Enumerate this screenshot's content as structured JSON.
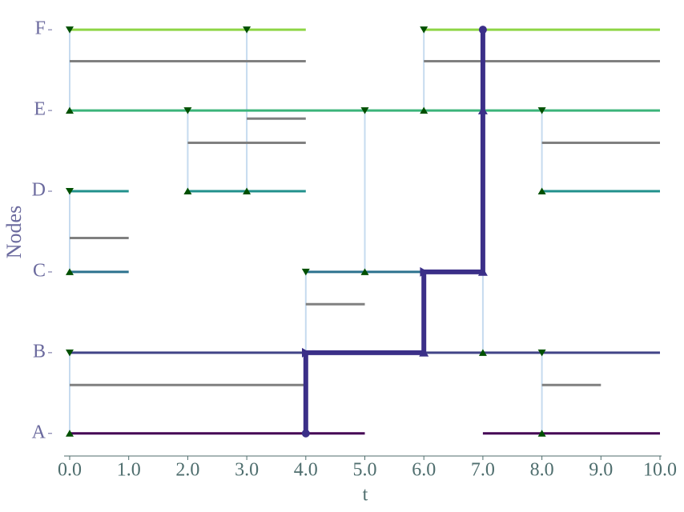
{
  "chart_data": {
    "type": "temporal-network",
    "xlabel": "t",
    "ylabel": "Nodes",
    "xlim": [
      0,
      10
    ],
    "xticks": [
      {
        "value": 0,
        "label": "0.0"
      },
      {
        "value": 1,
        "label": "1.0"
      },
      {
        "value": 2,
        "label": "2.0"
      },
      {
        "value": 3,
        "label": "3.0"
      },
      {
        "value": 4,
        "label": "4.0"
      },
      {
        "value": 5,
        "label": "5.0"
      },
      {
        "value": 6,
        "label": "6.0"
      },
      {
        "value": 7,
        "label": "7.0"
      },
      {
        "value": 8,
        "label": "8.0"
      },
      {
        "value": 9,
        "label": "9.0"
      },
      {
        "value": 10,
        "label": "10.0"
      }
    ],
    "ylim": [
      -0.25,
      5.2
    ],
    "yticks": [
      {
        "value": 0,
        "label": "A"
      },
      {
        "value": 1,
        "label": "B"
      },
      {
        "value": 2,
        "label": "C"
      },
      {
        "value": 3,
        "label": "D"
      },
      {
        "value": 4,
        "label": "E"
      },
      {
        "value": 5,
        "label": "F"
      }
    ],
    "nodes": [
      {
        "y": 0,
        "color": "#440154",
        "intervals": [
          [
            0,
            5
          ],
          [
            7,
            10
          ]
        ]
      },
      {
        "y": 1,
        "color": "#414487",
        "intervals": [
          [
            0,
            10
          ]
        ]
      },
      {
        "y": 2,
        "color": "#2c728e",
        "intervals": [
          [
            0,
            1
          ],
          [
            4,
            7
          ]
        ]
      },
      {
        "y": 3,
        "color": "#21918c",
        "intervals": [
          [
            0,
            1
          ],
          [
            2,
            4
          ],
          [
            8,
            10
          ]
        ]
      },
      {
        "y": 4,
        "color": "#3bb47a",
        "intervals": [
          [
            0,
            10
          ]
        ]
      },
      {
        "y": 5,
        "color": "#8ed545",
        "intervals": [
          [
            0,
            4
          ],
          [
            6,
            10
          ]
        ]
      }
    ],
    "duration_color": "#808080",
    "durations": [
      {
        "y": 4.61,
        "start": 0,
        "end": 4
      },
      {
        "y": 4.61,
        "start": 6,
        "end": 10
      },
      {
        "y": 3.9,
        "start": 3,
        "end": 4
      },
      {
        "y": 3.6,
        "start": 2,
        "end": 4
      },
      {
        "y": 3.6,
        "start": 8,
        "end": 10
      },
      {
        "y": 2.42,
        "start": 0,
        "end": 1
      },
      {
        "y": 1.6,
        "start": 4,
        "end": 5
      },
      {
        "y": 0.6,
        "start": 0,
        "end": 4
      },
      {
        "y": 0.6,
        "start": 8,
        "end": 9
      }
    ],
    "edge_color": "#c6dbef",
    "edges": [
      {
        "t": 0,
        "from": 0,
        "to": 1
      },
      {
        "t": 0,
        "from": 2,
        "to": 3
      },
      {
        "t": 0,
        "from": 4,
        "to": 5
      },
      {
        "t": 2,
        "from": 3,
        "to": 4
      },
      {
        "t": 3,
        "from": 3,
        "to": 5
      },
      {
        "t": 4,
        "from": 0,
        "to": 2
      },
      {
        "t": 5,
        "from": 2,
        "to": 4
      },
      {
        "t": 6,
        "from": 4,
        "to": 5
      },
      {
        "t": 6,
        "from": 1,
        "to": 2
      },
      {
        "t": 7,
        "from": 1,
        "to": 2
      },
      {
        "t": 7,
        "from": 2,
        "to": 5
      },
      {
        "t": 8,
        "from": 0,
        "to": 1
      },
      {
        "t": 8,
        "from": 3,
        "to": 4
      }
    ],
    "marker_color": "#005000",
    "markers": [
      {
        "t": 0,
        "y": 5,
        "shape": "down"
      },
      {
        "t": 0,
        "y": 1,
        "shape": "down"
      },
      {
        "t": 0,
        "y": 3,
        "shape": "down"
      },
      {
        "t": 2,
        "y": 4,
        "shape": "down"
      },
      {
        "t": 3,
        "y": 5,
        "shape": "down"
      },
      {
        "t": 4,
        "y": 2,
        "shape": "down"
      },
      {
        "t": 5,
        "y": 4,
        "shape": "down"
      },
      {
        "t": 6,
        "y": 5,
        "shape": "down"
      },
      {
        "t": 8,
        "y": 1,
        "shape": "down"
      },
      {
        "t": 8,
        "y": 4,
        "shape": "down"
      },
      {
        "t": 0,
        "y": 0,
        "shape": "up"
      },
      {
        "t": 0,
        "y": 2,
        "shape": "up"
      },
      {
        "t": 0,
        "y": 4,
        "shape": "up"
      },
      {
        "t": 2,
        "y": 3,
        "shape": "up"
      },
      {
        "t": 3,
        "y": 3,
        "shape": "up"
      },
      {
        "t": 5,
        "y": 2,
        "shape": "up"
      },
      {
        "t": 6,
        "y": 4,
        "shape": "up"
      },
      {
        "t": 7,
        "y": 1,
        "shape": "up"
      },
      {
        "t": 8,
        "y": 0,
        "shape": "up"
      },
      {
        "t": 8,
        "y": 3,
        "shape": "up"
      }
    ],
    "path": {
      "color": "#3b2f88",
      "x": [
        4,
        4,
        6,
        6,
        7,
        7
      ],
      "y": [
        0,
        1,
        1,
        2,
        2,
        5
      ],
      "markers": [
        {
          "t": 4,
          "y": 0,
          "shape": "circle"
        },
        {
          "t": 4,
          "y": 1,
          "shape": "right"
        },
        {
          "t": 6,
          "y": 1,
          "shape": "up"
        },
        {
          "t": 6,
          "y": 2,
          "shape": "right"
        },
        {
          "t": 7,
          "y": 2,
          "shape": "up"
        },
        {
          "t": 7,
          "y": 4,
          "shape": "up"
        },
        {
          "t": 7,
          "y": 5,
          "shape": "circle"
        }
      ]
    }
  }
}
